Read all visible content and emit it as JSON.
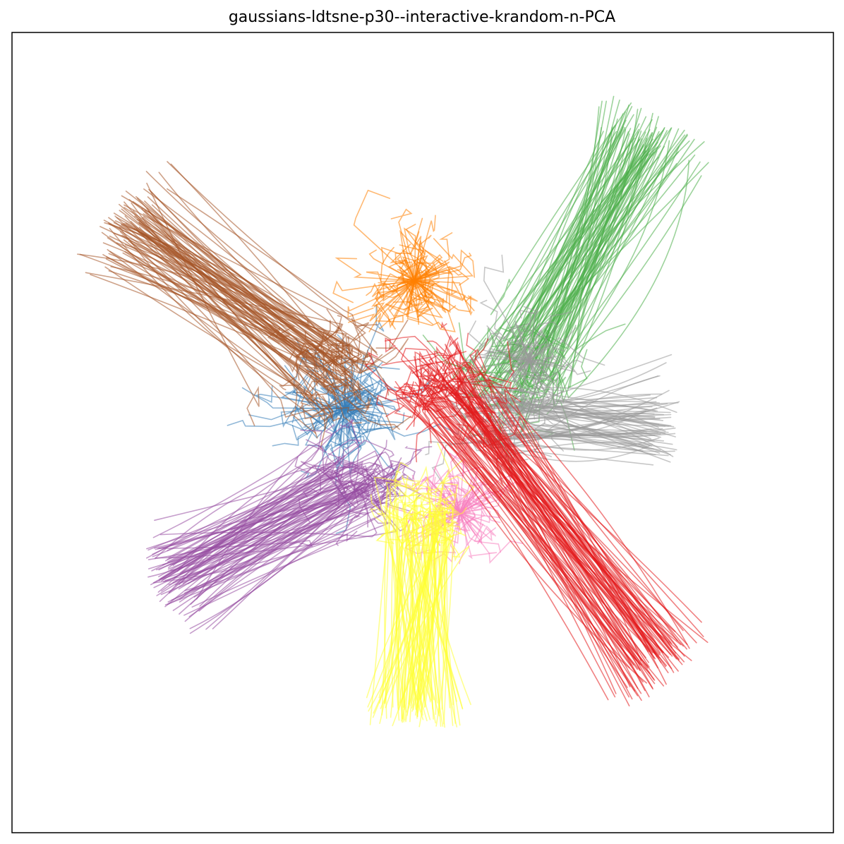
{
  "chart_data": {
    "type": "line",
    "title": "gaussians-ldtsne-p30--interactive-krandom-n-PCA",
    "xlabel": "",
    "ylabel": "",
    "axes_ticks": false,
    "grid": false,
    "legend": "none",
    "xlim": [
      -1,
      1
    ],
    "ylim": [
      -1,
      1
    ],
    "description_kind": "embedding trajectories, one line per point, colored by cluster",
    "series": [
      {
        "color": "#377eb8",
        "center": [
          -0.19,
          0.06
        ],
        "start": [
          -0.19,
          0.06
        ],
        "spread": 0.09,
        "count": 90
      },
      {
        "color": "#ff7f00",
        "center": [
          -0.02,
          0.38
        ],
        "start": [
          -0.02,
          0.38
        ],
        "spread": 0.08,
        "count": 90
      },
      {
        "color": "#4daf4a",
        "center": [
          0.24,
          0.14
        ],
        "start": [
          0.55,
          0.75
        ],
        "spread": 0.08,
        "count": 90
      },
      {
        "color": "#a65628",
        "center": [
          -0.22,
          0.15
        ],
        "start": [
          -0.73,
          0.52
        ],
        "spread": 0.08,
        "count": 90
      },
      {
        "color": "#999999",
        "center": [
          0.26,
          0.18
        ],
        "start": [
          0.26,
          0.18
        ],
        "spread": 0.07,
        "count": 60
      },
      {
        "color": "#999999",
        "center": [
          0.2,
          0.04
        ],
        "start": [
          0.58,
          0.02
        ],
        "spread": 0.07,
        "count": 70
      },
      {
        "color": "#984ea3",
        "center": [
          -0.15,
          -0.12
        ],
        "start": [
          -0.62,
          -0.37
        ],
        "spread": 0.07,
        "count": 90
      },
      {
        "color": "#f781bf",
        "center": [
          0.09,
          -0.2
        ],
        "start": [
          0.09,
          -0.2
        ],
        "spread": 0.07,
        "count": 80
      },
      {
        "color": "#ffff33",
        "center": [
          0.0,
          -0.2
        ],
        "start": [
          -0.02,
          -0.7
        ],
        "spread": 0.06,
        "count": 90
      },
      {
        "color": "#e41a1c",
        "center": [
          0.05,
          0.12
        ],
        "start": [
          0.58,
          -0.58
        ],
        "spread": 0.08,
        "count": 90
      }
    ]
  }
}
